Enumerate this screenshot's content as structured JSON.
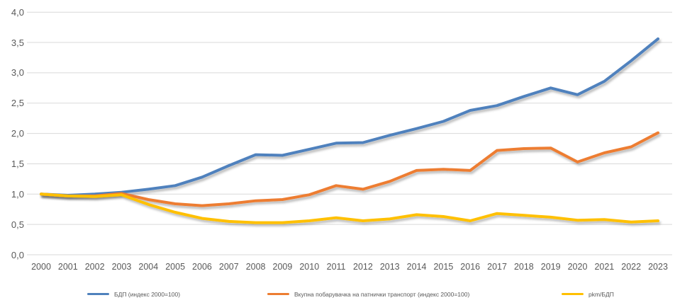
{
  "colors": {
    "background": "#FFFFFF",
    "gridline": "#D9D9D9",
    "axis_text": "#595959",
    "blue": "#4F81BD",
    "orange": "#ED7D31",
    "yellow": "#FFC000"
  },
  "chart_data": {
    "type": "line",
    "title": "",
    "xlabel": "",
    "ylabel": "",
    "grid": true,
    "legend_position": "bottom",
    "x": [
      "2000",
      "2001",
      "2002",
      "2003",
      "2004",
      "2005",
      "2006",
      "2007",
      "2008",
      "2009",
      "2010",
      "2011",
      "2012",
      "2013",
      "2014",
      "2015",
      "2016",
      "2017",
      "2018",
      "2019",
      "2020",
      "2021",
      "2022",
      "2023"
    ],
    "y_axis": {
      "min": 0,
      "max": 4,
      "step": 0.5,
      "tick_labels_top_to_bottom": [
        "4,0",
        "3,5",
        "3,0",
        "2,5",
        "2,0",
        "1,5",
        "1,0",
        "0,5",
        "0,0"
      ]
    },
    "series": [
      {
        "id": "bdp",
        "name": "БДП (индекс 2000=100)",
        "color": "#4F81BD",
        "values": [
          1.0,
          0.98,
          1.0,
          1.03,
          1.08,
          1.14,
          1.28,
          1.47,
          1.65,
          1.64,
          1.74,
          1.84,
          1.85,
          1.97,
          2.08,
          2.2,
          2.38,
          2.46,
          2.61,
          2.75,
          2.64,
          2.86,
          3.2,
          3.56
        ]
      },
      {
        "id": "transport-demand",
        "name": "Вкупна побарувачка на патнички транспорт (индекс 2000=100)",
        "color": "#ED7D31",
        "values": [
          1.0,
          0.97,
          0.97,
          1.01,
          0.91,
          0.84,
          0.81,
          0.84,
          0.89,
          0.91,
          0.99,
          1.14,
          1.08,
          1.21,
          1.39,
          1.41,
          1.39,
          1.72,
          1.75,
          1.76,
          1.53,
          1.68,
          1.78,
          2.01
        ]
      },
      {
        "id": "pkm-gdp",
        "name": "pkm/БДП",
        "color": "#FFC000",
        "values": [
          1.0,
          0.97,
          0.96,
          0.99,
          0.83,
          0.7,
          0.6,
          0.55,
          0.53,
          0.53,
          0.56,
          0.61,
          0.56,
          0.59,
          0.66,
          0.63,
          0.56,
          0.68,
          0.65,
          0.62,
          0.57,
          0.58,
          0.54,
          0.56
        ]
      }
    ]
  }
}
